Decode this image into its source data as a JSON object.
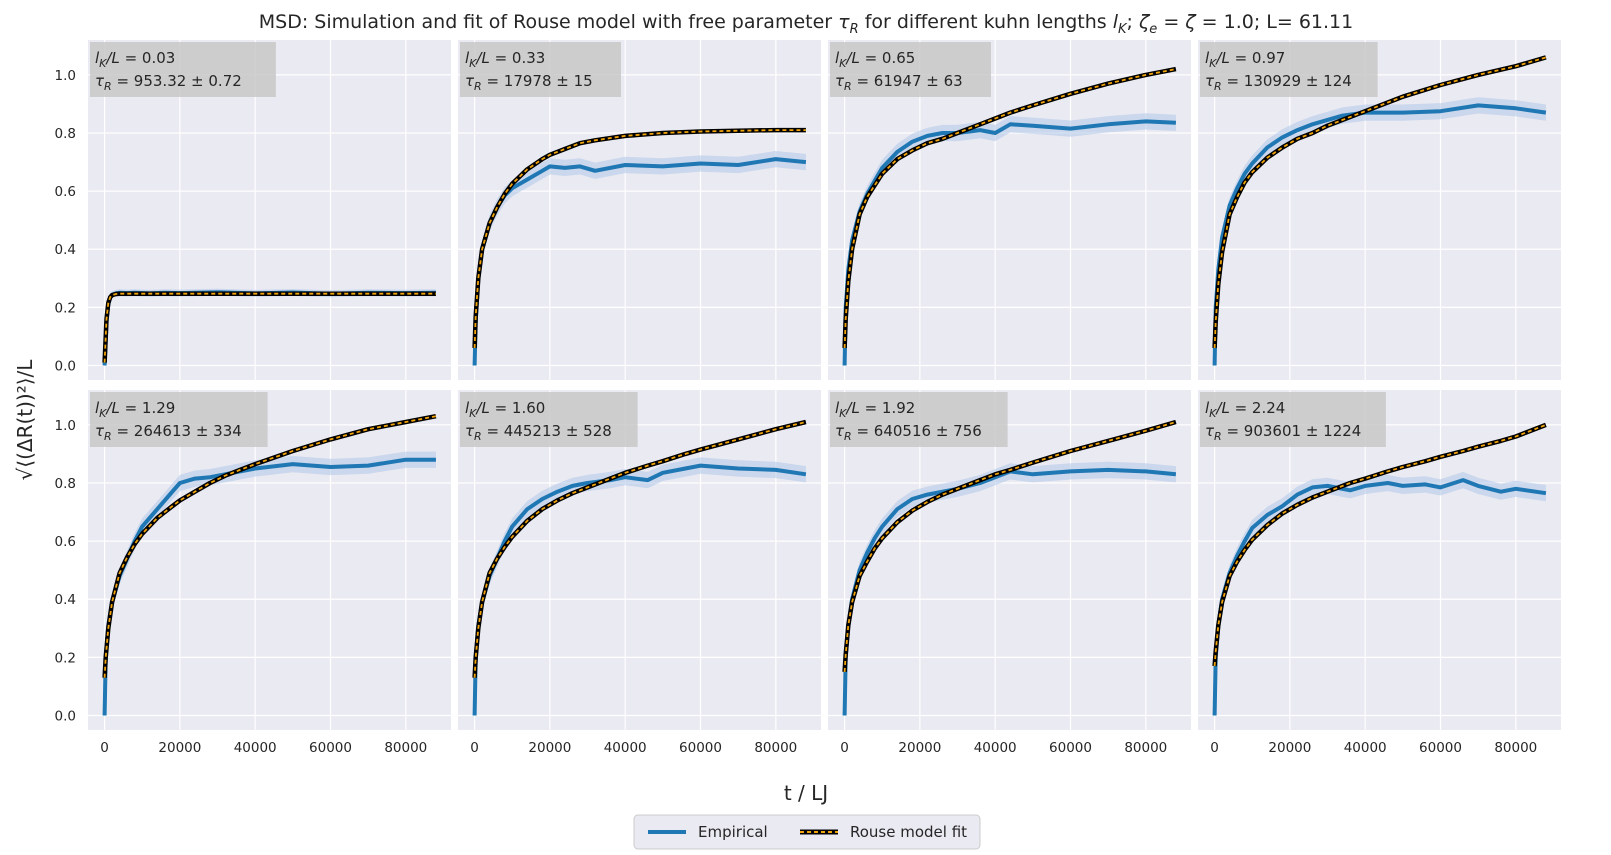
{
  "figure": {
    "title": "MSD: Simulation and fit of Rouse model with free parameter τ_R for different kuhn lengths l_K; ζ_e = ζ = 1.0; L= 61.11",
    "title_parts": {
      "p1": "MSD: Simulation and fit of Rouse model with free parameter ",
      "tau": "τ",
      "R": "R",
      "p2": " for different kuhn lengths ",
      "l": "l",
      "K": "K",
      "p3": "; ",
      "zeta1": "ζ",
      "e": "e",
      "p4": " = ",
      "zeta2": "ζ",
      "p5": " = 1.0; L= 61.11"
    },
    "xlabel": "t / LJ",
    "ylabel": "√⟨(ΔR(t))²⟩/L",
    "colors": {
      "background": "#eaeaf2",
      "grid": "#ffffff",
      "empirical": "#1f77b4",
      "band": "#aec7e8",
      "fit_outer": "#000000",
      "fit_dash": "#f0a30a",
      "annotation_box": "#c8c8c8"
    }
  },
  "legend": {
    "empirical_label": "Empirical",
    "fit_label": "Rouse model fit",
    "placement": "bottom-center"
  },
  "chart_data": [
    {
      "type": "line",
      "panel": 1,
      "lk_label": "0.03",
      "tau_label": "953.32 ± 0.72",
      "xlim": [
        -4400,
        92000
      ],
      "ylim": [
        -0.05,
        1.12
      ],
      "xticks": [
        0,
        20000,
        40000,
        60000,
        80000
      ],
      "yticks": [
        0.0,
        0.2,
        0.4,
        0.6,
        0.8,
        1.0
      ],
      "ytick_labels": [
        "0.0",
        "0.2",
        "0.4",
        "0.6",
        "0.8",
        "1.0"
      ],
      "xtick_labels": [],
      "shows_yticks": true,
      "shows_xticks": false,
      "series": [
        {
          "name": "Empirical",
          "x": [
            0,
            500,
            1000,
            1500,
            2000,
            3000,
            4000,
            6000,
            8000,
            12000,
            16000,
            20000,
            30000,
            40000,
            50000,
            60000,
            70000,
            80000,
            88000
          ],
          "y": [
            0,
            0.15,
            0.21,
            0.235,
            0.244,
            0.248,
            0.25,
            0.249,
            0.25,
            0.248,
            0.25,
            0.249,
            0.252,
            0.248,
            0.251,
            0.247,
            0.25,
            0.249,
            0.25
          ]
        },
        {
          "name": "Rouse model fit",
          "x": [
            0,
            500,
            1000,
            1500,
            2000,
            3000,
            4000,
            6000,
            8000,
            12000,
            16000,
            20000,
            30000,
            40000,
            50000,
            60000,
            70000,
            80000,
            88000
          ],
          "y": [
            0.01,
            0.16,
            0.215,
            0.235,
            0.242,
            0.246,
            0.247,
            0.247,
            0.247,
            0.247,
            0.247,
            0.247,
            0.247,
            0.247,
            0.247,
            0.247,
            0.247,
            0.247,
            0.247
          ]
        }
      ]
    },
    {
      "type": "line",
      "panel": 2,
      "lk_label": "0.33",
      "tau_label": "17978 ± 15",
      "xlim": [
        -4400,
        92000
      ],
      "ylim": [
        -0.05,
        1.12
      ],
      "xticks": [
        0,
        20000,
        40000,
        60000,
        80000
      ],
      "yticks": [
        0.0,
        0.2,
        0.4,
        0.6,
        0.8,
        1.0
      ],
      "ytick_labels": [],
      "xtick_labels": [],
      "shows_yticks": false,
      "shows_xticks": false,
      "series": [
        {
          "name": "Empirical",
          "x": [
            0,
            300,
            1000,
            2000,
            4000,
            6000,
            8000,
            10000,
            14000,
            18000,
            20000,
            24000,
            28000,
            32000,
            40000,
            50000,
            60000,
            70000,
            80000,
            88000
          ],
          "y": [
            0,
            0.15,
            0.3,
            0.4,
            0.49,
            0.545,
            0.585,
            0.61,
            0.64,
            0.67,
            0.685,
            0.68,
            0.685,
            0.67,
            0.69,
            0.685,
            0.695,
            0.69,
            0.71,
            0.7
          ]
        },
        {
          "name": "Rouse model fit",
          "x": [
            0,
            300,
            1000,
            2000,
            4000,
            6000,
            8000,
            10000,
            14000,
            18000,
            20000,
            24000,
            28000,
            32000,
            40000,
            50000,
            60000,
            70000,
            80000,
            88000
          ],
          "y": [
            0.06,
            0.17,
            0.3,
            0.4,
            0.49,
            0.545,
            0.59,
            0.625,
            0.675,
            0.71,
            0.725,
            0.745,
            0.765,
            0.775,
            0.79,
            0.8,
            0.805,
            0.808,
            0.81,
            0.81
          ]
        }
      ]
    },
    {
      "type": "line",
      "panel": 3,
      "lk_label": "0.65",
      "tau_label": "61947 ± 63",
      "xlim": [
        -4400,
        92000
      ],
      "ylim": [
        -0.05,
        1.12
      ],
      "xticks": [
        0,
        20000,
        40000,
        60000,
        80000
      ],
      "yticks": [
        0.0,
        0.2,
        0.4,
        0.6,
        0.8,
        1.0
      ],
      "ytick_labels": [],
      "xtick_labels": [],
      "shows_yticks": false,
      "shows_xticks": false,
      "series": [
        {
          "name": "Empirical",
          "x": [
            0,
            300,
            1000,
            2000,
            4000,
            6000,
            8000,
            10000,
            14000,
            18000,
            22000,
            26000,
            30000,
            36000,
            40000,
            44000,
            50000,
            60000,
            70000,
            80000,
            88000
          ],
          "y": [
            0,
            0.2,
            0.33,
            0.43,
            0.53,
            0.59,
            0.635,
            0.68,
            0.735,
            0.77,
            0.79,
            0.8,
            0.8,
            0.81,
            0.8,
            0.83,
            0.825,
            0.815,
            0.83,
            0.84,
            0.835
          ]
        },
        {
          "name": "Rouse model fit",
          "x": [
            0,
            300,
            1000,
            2000,
            4000,
            6000,
            8000,
            10000,
            14000,
            18000,
            22000,
            26000,
            30000,
            36000,
            40000,
            44000,
            50000,
            60000,
            70000,
            80000,
            88000
          ],
          "y": [
            0.06,
            0.16,
            0.29,
            0.4,
            0.52,
            0.58,
            0.62,
            0.66,
            0.71,
            0.74,
            0.765,
            0.78,
            0.8,
            0.83,
            0.85,
            0.87,
            0.895,
            0.935,
            0.97,
            1.0,
            1.02
          ]
        }
      ]
    },
    {
      "type": "line",
      "panel": 4,
      "lk_label": "0.97",
      "tau_label": "130929 ± 124",
      "xlim": [
        -4400,
        92000
      ],
      "ylim": [
        -0.05,
        1.12
      ],
      "xticks": [
        0,
        20000,
        40000,
        60000,
        80000
      ],
      "yticks": [
        0.0,
        0.2,
        0.4,
        0.6,
        0.8,
        1.0
      ],
      "ytick_labels": [],
      "xtick_labels": [],
      "shows_yticks": false,
      "shows_xticks": false,
      "series": [
        {
          "name": "Empirical",
          "x": [
            0,
            300,
            1000,
            2000,
            4000,
            6000,
            8000,
            10000,
            14000,
            18000,
            22000,
            26000,
            30000,
            34000,
            40000,
            50000,
            60000,
            70000,
            80000,
            88000
          ],
          "y": [
            0,
            0.2,
            0.33,
            0.44,
            0.55,
            0.61,
            0.66,
            0.695,
            0.75,
            0.785,
            0.81,
            0.83,
            0.845,
            0.86,
            0.87,
            0.87,
            0.875,
            0.895,
            0.885,
            0.87
          ]
        },
        {
          "name": "Rouse model fit",
          "x": [
            0,
            300,
            1000,
            2000,
            4000,
            6000,
            8000,
            10000,
            14000,
            18000,
            22000,
            26000,
            30000,
            34000,
            40000,
            50000,
            60000,
            70000,
            80000,
            88000
          ],
          "y": [
            0.06,
            0.15,
            0.28,
            0.39,
            0.52,
            0.58,
            0.63,
            0.665,
            0.715,
            0.75,
            0.78,
            0.8,
            0.825,
            0.845,
            0.875,
            0.925,
            0.965,
            1.0,
            1.03,
            1.06
          ]
        }
      ]
    },
    {
      "type": "line",
      "panel": 5,
      "lk_label": "1.29",
      "tau_label": "264613 ± 334",
      "xlim": [
        -4400,
        92000
      ],
      "ylim": [
        -0.05,
        1.12
      ],
      "xticks": [
        0,
        20000,
        40000,
        60000,
        80000
      ],
      "yticks": [
        0.0,
        0.2,
        0.4,
        0.6,
        0.8,
        1.0
      ],
      "ytick_labels": [
        "0.0",
        "0.2",
        "0.4",
        "0.6",
        "0.8",
        "1.0"
      ],
      "xtick_labels": [
        "0",
        "20000",
        "40000",
        "60000",
        "80000"
      ],
      "shows_yticks": true,
      "shows_xticks": true,
      "series": [
        {
          "name": "Empirical",
          "x": [
            0,
            300,
            1000,
            2000,
            4000,
            6000,
            8000,
            10000,
            14000,
            18000,
            20000,
            24000,
            28000,
            32000,
            36000,
            40000,
            50000,
            60000,
            70000,
            80000,
            88000
          ],
          "y": [
            0,
            0.2,
            0.31,
            0.39,
            0.48,
            0.54,
            0.6,
            0.65,
            0.71,
            0.77,
            0.8,
            0.815,
            0.82,
            0.83,
            0.84,
            0.85,
            0.865,
            0.855,
            0.86,
            0.88,
            0.88
          ]
        },
        {
          "name": "Rouse model fit",
          "x": [
            0,
            300,
            1000,
            2000,
            4000,
            6000,
            8000,
            10000,
            14000,
            18000,
            20000,
            24000,
            28000,
            32000,
            36000,
            40000,
            50000,
            60000,
            70000,
            80000,
            88000
          ],
          "y": [
            0.13,
            0.2,
            0.3,
            0.39,
            0.49,
            0.545,
            0.59,
            0.625,
            0.68,
            0.72,
            0.74,
            0.77,
            0.8,
            0.825,
            0.845,
            0.865,
            0.91,
            0.95,
            0.985,
            1.01,
            1.03
          ]
        }
      ]
    },
    {
      "type": "line",
      "panel": 6,
      "lk_label": "1.60",
      "tau_label": "445213 ± 528",
      "xlim": [
        -4400,
        92000
      ],
      "ylim": [
        -0.05,
        1.12
      ],
      "xticks": [
        0,
        20000,
        40000,
        60000,
        80000
      ],
      "yticks": [
        0.0,
        0.2,
        0.4,
        0.6,
        0.8,
        1.0
      ],
      "ytick_labels": [],
      "xtick_labels": [
        "0",
        "20000",
        "40000",
        "60000",
        "80000"
      ],
      "shows_yticks": false,
      "shows_xticks": true,
      "series": [
        {
          "name": "Empirical",
          "x": [
            0,
            300,
            1000,
            2000,
            4000,
            6000,
            8000,
            10000,
            14000,
            18000,
            22000,
            26000,
            30000,
            36000,
            40000,
            46000,
            50000,
            56000,
            60000,
            70000,
            80000,
            88000
          ],
          "y": [
            0,
            0.2,
            0.31,
            0.39,
            0.48,
            0.54,
            0.6,
            0.65,
            0.71,
            0.745,
            0.77,
            0.79,
            0.8,
            0.81,
            0.82,
            0.81,
            0.835,
            0.85,
            0.86,
            0.85,
            0.845,
            0.83
          ]
        },
        {
          "name": "Rouse model fit",
          "x": [
            0,
            300,
            1000,
            2000,
            4000,
            6000,
            8000,
            10000,
            14000,
            18000,
            22000,
            26000,
            30000,
            36000,
            40000,
            46000,
            50000,
            56000,
            60000,
            70000,
            80000,
            88000
          ],
          "y": [
            0.13,
            0.2,
            0.3,
            0.39,
            0.49,
            0.54,
            0.58,
            0.615,
            0.67,
            0.71,
            0.74,
            0.765,
            0.785,
            0.815,
            0.835,
            0.86,
            0.875,
            0.9,
            0.915,
            0.95,
            0.985,
            1.01
          ]
        }
      ]
    },
    {
      "type": "line",
      "panel": 7,
      "lk_label": "1.92",
      "tau_label": "640516 ± 756",
      "xlim": [
        -4400,
        92000
      ],
      "ylim": [
        -0.05,
        1.12
      ],
      "xticks": [
        0,
        20000,
        40000,
        60000,
        80000
      ],
      "yticks": [
        0.0,
        0.2,
        0.4,
        0.6,
        0.8,
        1.0
      ],
      "ytick_labels": [],
      "xtick_labels": [
        "0",
        "20000",
        "40000",
        "60000",
        "80000"
      ],
      "shows_yticks": false,
      "shows_xticks": true,
      "series": [
        {
          "name": "Empirical",
          "x": [
            0,
            300,
            1000,
            2000,
            4000,
            6000,
            8000,
            10000,
            14000,
            18000,
            22000,
            26000,
            30000,
            36000,
            40000,
            44000,
            50000,
            60000,
            70000,
            80000,
            88000
          ],
          "y": [
            0,
            0.2,
            0.31,
            0.4,
            0.5,
            0.56,
            0.61,
            0.65,
            0.71,
            0.745,
            0.76,
            0.77,
            0.78,
            0.8,
            0.82,
            0.84,
            0.83,
            0.84,
            0.845,
            0.84,
            0.83
          ]
        },
        {
          "name": "Rouse model fit",
          "x": [
            0,
            300,
            1000,
            2000,
            4000,
            6000,
            8000,
            10000,
            14000,
            18000,
            22000,
            26000,
            30000,
            36000,
            40000,
            44000,
            50000,
            60000,
            70000,
            80000,
            88000
          ],
          "y": [
            0.15,
            0.21,
            0.31,
            0.39,
            0.48,
            0.53,
            0.575,
            0.61,
            0.665,
            0.705,
            0.735,
            0.76,
            0.78,
            0.81,
            0.83,
            0.845,
            0.87,
            0.91,
            0.945,
            0.98,
            1.01
          ]
        }
      ]
    },
    {
      "type": "line",
      "panel": 8,
      "lk_label": "2.24",
      "tau_label": "903601 ± 1224",
      "xlim": [
        -4400,
        92000
      ],
      "ylim": [
        -0.05,
        1.12
      ],
      "xticks": [
        0,
        20000,
        40000,
        60000,
        80000
      ],
      "yticks": [
        0.0,
        0.2,
        0.4,
        0.6,
        0.8,
        1.0
      ],
      "ytick_labels": [],
      "xtick_labels": [
        "0",
        "20000",
        "40000",
        "60000",
        "80000"
      ],
      "shows_yticks": false,
      "shows_xticks": true,
      "series": [
        {
          "name": "Empirical",
          "x": [
            0,
            300,
            1000,
            2000,
            4000,
            6000,
            8000,
            10000,
            14000,
            18000,
            22000,
            26000,
            30000,
            36000,
            40000,
            46000,
            50000,
            56000,
            60000,
            66000,
            70000,
            76000,
            80000,
            88000
          ],
          "y": [
            0,
            0.2,
            0.31,
            0.4,
            0.49,
            0.55,
            0.6,
            0.645,
            0.69,
            0.72,
            0.76,
            0.785,
            0.79,
            0.775,
            0.79,
            0.8,
            0.79,
            0.795,
            0.785,
            0.81,
            0.79,
            0.77,
            0.78,
            0.765
          ]
        },
        {
          "name": "Rouse model fit",
          "x": [
            0,
            300,
            1000,
            2000,
            4000,
            6000,
            8000,
            10000,
            14000,
            18000,
            22000,
            26000,
            30000,
            36000,
            40000,
            46000,
            50000,
            56000,
            60000,
            66000,
            70000,
            76000,
            80000,
            88000
          ],
          "y": [
            0.17,
            0.22,
            0.31,
            0.39,
            0.48,
            0.53,
            0.57,
            0.605,
            0.655,
            0.695,
            0.725,
            0.75,
            0.77,
            0.8,
            0.815,
            0.84,
            0.855,
            0.875,
            0.89,
            0.91,
            0.925,
            0.945,
            0.96,
            1.0
          ]
        }
      ]
    }
  ]
}
